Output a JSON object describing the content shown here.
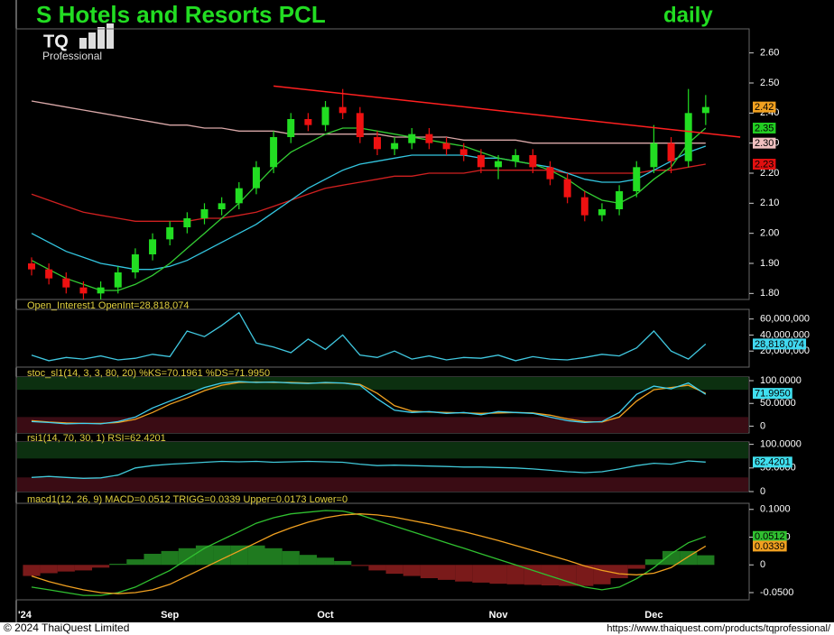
{
  "footer": {
    "copyright": "© 2024 ThaiQuest Limited",
    "url": "https://www.thaiquest.com/products/tqprofessional/"
  },
  "chart_data": [
    {
      "type": "candlestick",
      "title": "S Hotels and Resorts PCL",
      "period": "daily",
      "logo": "TQ",
      "logo_subtitle": "Professional",
      "categories": [
        "'24",
        null,
        null,
        null,
        null,
        null,
        null,
        null,
        "Sep",
        null,
        null,
        null,
        null,
        null,
        null,
        null,
        null,
        "Oct",
        null,
        null,
        null,
        null,
        null,
        null,
        null,
        null,
        null,
        "Nov",
        null,
        null,
        null,
        null,
        null,
        null,
        null,
        null,
        "Dec",
        null,
        null,
        null
      ],
      "open": [
        1.9,
        1.88,
        1.85,
        1.82,
        1.8,
        1.82,
        1.87,
        1.93,
        1.98,
        2.02,
        2.05,
        2.08,
        2.1,
        2.15,
        2.22,
        2.32,
        2.38,
        2.36,
        2.42,
        2.4,
        2.32,
        2.28,
        2.3,
        2.33,
        2.3,
        2.28,
        2.26,
        2.22,
        2.24,
        2.26,
        2.22,
        2.18,
        2.12,
        2.06,
        2.08,
        2.14,
        2.22,
        2.3,
        2.24,
        2.4
      ],
      "high": [
        1.92,
        1.9,
        1.87,
        1.84,
        1.84,
        1.89,
        1.95,
        2.0,
        2.04,
        2.07,
        2.1,
        2.12,
        2.17,
        2.24,
        2.34,
        2.4,
        2.4,
        2.44,
        2.48,
        2.42,
        2.34,
        2.32,
        2.35,
        2.35,
        2.32,
        2.3,
        2.28,
        2.26,
        2.28,
        2.28,
        2.24,
        2.2,
        2.14,
        2.1,
        2.16,
        2.24,
        2.36,
        2.32,
        2.48,
        2.46
      ],
      "low": [
        1.86,
        1.83,
        1.8,
        1.78,
        1.78,
        1.8,
        1.85,
        1.91,
        1.96,
        2.0,
        2.03,
        2.06,
        2.08,
        2.13,
        2.2,
        2.3,
        2.34,
        2.34,
        2.38,
        2.3,
        2.26,
        2.26,
        2.28,
        2.28,
        2.26,
        2.24,
        2.2,
        2.18,
        2.22,
        2.2,
        2.16,
        2.1,
        2.04,
        2.04,
        2.06,
        2.12,
        2.2,
        2.2,
        2.22,
        2.36
      ],
      "close": [
        1.88,
        1.85,
        1.82,
        1.8,
        1.82,
        1.87,
        1.93,
        1.98,
        2.02,
        2.05,
        2.08,
        2.1,
        2.15,
        2.22,
        2.32,
        2.38,
        2.36,
        2.42,
        2.4,
        2.32,
        2.28,
        2.3,
        2.33,
        2.3,
        2.28,
        2.26,
        2.22,
        2.24,
        2.26,
        2.22,
        2.18,
        2.12,
        2.06,
        2.08,
        2.14,
        2.22,
        2.3,
        2.24,
        2.4,
        2.42
      ],
      "up_color": "#22dd22",
      "down_color": "#ee1111",
      "series": [
        {
          "color": "#d9a8a8",
          "values": [
            2.44,
            2.43,
            2.42,
            2.41,
            2.4,
            2.39,
            2.38,
            2.37,
            2.36,
            2.36,
            2.35,
            2.35,
            2.34,
            2.34,
            2.34,
            2.33,
            2.33,
            2.33,
            2.33,
            2.33,
            2.33,
            2.32,
            2.32,
            2.32,
            2.32,
            2.31,
            2.31,
            2.31,
            2.31,
            2.3,
            2.3,
            2.3,
            2.3,
            2.3,
            2.3,
            2.3,
            2.3,
            2.3,
            2.3,
            2.3
          ]
        },
        {
          "color": "#d02020",
          "values": [
            2.13,
            2.11,
            2.09,
            2.07,
            2.06,
            2.05,
            2.04,
            2.04,
            2.04,
            2.04,
            2.05,
            2.05,
            2.06,
            2.07,
            2.09,
            2.11,
            2.13,
            2.15,
            2.16,
            2.17,
            2.18,
            2.19,
            2.19,
            2.2,
            2.2,
            2.2,
            2.21,
            2.21,
            2.21,
            2.21,
            2.21,
            2.2,
            2.2,
            2.2,
            2.2,
            2.2,
            2.21,
            2.21,
            2.22,
            2.23
          ]
        },
        {
          "color": "#33c6e0",
          "values": [
            2.0,
            1.97,
            1.94,
            1.92,
            1.9,
            1.89,
            1.88,
            1.88,
            1.89,
            1.91,
            1.94,
            1.97,
            2.0,
            2.03,
            2.07,
            2.11,
            2.15,
            2.18,
            2.21,
            2.23,
            2.24,
            2.25,
            2.26,
            2.26,
            2.26,
            2.26,
            2.25,
            2.25,
            2.24,
            2.23,
            2.22,
            2.2,
            2.18,
            2.17,
            2.17,
            2.18,
            2.21,
            2.24,
            2.27,
            2.29
          ]
        },
        {
          "color": "#33cc33",
          "values": [
            1.91,
            1.88,
            1.85,
            1.83,
            1.81,
            1.81,
            1.83,
            1.86,
            1.9,
            1.95,
            2.0,
            2.05,
            2.1,
            2.16,
            2.22,
            2.27,
            2.3,
            2.33,
            2.35,
            2.35,
            2.34,
            2.33,
            2.32,
            2.31,
            2.3,
            2.29,
            2.27,
            2.25,
            2.24,
            2.23,
            2.21,
            2.18,
            2.14,
            2.11,
            2.1,
            2.13,
            2.18,
            2.22,
            2.3,
            2.35
          ]
        }
      ],
      "trendline": {
        "x": [
          14,
          41
        ],
        "values": [
          2.49,
          2.32
        ],
        "color": "#ff2020"
      },
      "ylim": [
        1.78,
        2.68
      ],
      "yticks": [
        {
          "value": 1.8,
          "label": "1.80"
        },
        {
          "value": 1.9,
          "label": "1.90"
        },
        {
          "value": 2.0,
          "label": "2.00"
        },
        {
          "value": 2.1,
          "label": "2.10"
        },
        {
          "value": 2.2,
          "label": "2.20"
        },
        {
          "value": 2.3,
          "label": "2.30"
        },
        {
          "value": 2.4,
          "label": "2.40"
        },
        {
          "value": 2.5,
          "label": "2.50"
        },
        {
          "value": 2.6,
          "label": "2.60"
        }
      ],
      "last_value_labels": [
        {
          "value": 2.42,
          "label": "2.42",
          "color": "#f0a020"
        },
        {
          "value": 2.35,
          "label": "2.35",
          "color": "#22cc22"
        },
        {
          "value": 2.3,
          "label": "2.30",
          "color": "#f0c0c0"
        },
        {
          "value": 2.23,
          "label": "2.23",
          "color": "#e01010"
        }
      ]
    },
    {
      "type": "line",
      "title": "Open_Interest1 OpenInt=28,818,074",
      "series": [
        {
          "color": "#40c8e0",
          "values": [
            15000000,
            8000000,
            12000000,
            10000000,
            14000000,
            9000000,
            11000000,
            16000000,
            13000000,
            45000000,
            38000000,
            52000000,
            68000000,
            30000000,
            25000000,
            18000000,
            35000000,
            22000000,
            40000000,
            15000000,
            12000000,
            20000000,
            10000000,
            14000000,
            9000000,
            12000000,
            11000000,
            15000000,
            8000000,
            13000000,
            10000000,
            9000000,
            12000000,
            16000000,
            14000000,
            24000000,
            45000000,
            20000000,
            10000000,
            28818074
          ]
        }
      ],
      "ylim": [
        0,
        72000000
      ],
      "yticks": [
        {
          "value": 20000000,
          "label": "20,000,000"
        },
        {
          "value": 40000000,
          "label": "40,000,000"
        },
        {
          "value": 60000000,
          "label": "60,000,000"
        }
      ],
      "last_value_labels": [
        {
          "value": 28818074,
          "label": "28,818,074",
          "color": "#40d8f0"
        }
      ]
    },
    {
      "type": "line",
      "title": "stoc_sl1(14, 3, 3, 80, 20) %KS=70.1961 %DS=71.9950",
      "bands": [
        {
          "from": 80,
          "to": 108,
          "color": "#0c3010"
        },
        {
          "from": -15,
          "to": 20,
          "color": "#3a0c14"
        }
      ],
      "series": [
        {
          "color": "#f0a020",
          "values": [
            12,
            9,
            7,
            6,
            6,
            8,
            15,
            30,
            48,
            62,
            78,
            90,
            96,
            97,
            96,
            96,
            95,
            95,
            95,
            92,
            72,
            45,
            33,
            31,
            30,
            29,
            28,
            29,
            30,
            29,
            24,
            16,
            10,
            9,
            20,
            55,
            80,
            85,
            90,
            72
          ]
        },
        {
          "color": "#40d0f0",
          "values": [
            10,
            8,
            5,
            6,
            5,
            10,
            20,
            40,
            55,
            70,
            85,
            95,
            98,
            96,
            97,
            95,
            94,
            96,
            95,
            90,
            60,
            35,
            30,
            32,
            28,
            30,
            25,
            32,
            30,
            28,
            20,
            12,
            8,
            10,
            30,
            70,
            88,
            82,
            95,
            70
          ]
        }
      ],
      "ylim": [
        -15,
        108
      ],
      "yticks": [
        0,
        {
          "value": 50,
          "label": "50.0000"
        },
        {
          "value": 100,
          "label": "100.0000"
        }
      ],
      "last_value_labels": [
        {
          "value": 71.995,
          "label": "71.9950",
          "color": "#40e0f0"
        }
      ]
    },
    {
      "type": "line",
      "title": "rsi1(14, 70, 30, 1) RSI=62.4201",
      "bands": [
        {
          "from": 70,
          "to": 105,
          "color": "#0c3010"
        },
        {
          "from": 0,
          "to": 30,
          "color": "#3a0c14"
        }
      ],
      "series": [
        {
          "color": "#40c8d8",
          "values": [
            30,
            32,
            30,
            28,
            29,
            35,
            50,
            55,
            58,
            60,
            62,
            64,
            63,
            64,
            62,
            63,
            64,
            63,
            62,
            58,
            55,
            56,
            55,
            54,
            53,
            52,
            52,
            51,
            50,
            48,
            45,
            42,
            40,
            42,
            48,
            55,
            60,
            58,
            65,
            62.4201
          ]
        }
      ],
      "ylim": [
        0,
        105
      ],
      "yticks": [
        0,
        {
          "value": 50,
          "label": "50.0000"
        },
        {
          "value": 100,
          "label": "100.0000"
        }
      ],
      "last_value_labels": [
        {
          "value": 62.4201,
          "label": "62.4201",
          "color": "#40e0f0"
        }
      ]
    },
    {
      "type": "macd",
      "title": "macd1(12, 26, 9) MACD=0.0512 TRIGG=0.0339 Upper=0.0173 Lower=0",
      "histogram": {
        "pos_color": "#1f7a1f",
        "neg_color": "#7a1a1a",
        "values": [
          -0.02,
          -0.015,
          -0.012,
          -0.01,
          -0.005,
          0.002,
          0.01,
          0.02,
          0.025,
          0.03,
          0.035,
          0.035,
          0.035,
          0.035,
          0.03,
          0.025,
          0.018,
          0.013,
          0.007,
          -0.002,
          -0.01,
          -0.016,
          -0.02,
          -0.024,
          -0.027,
          -0.03,
          -0.032,
          -0.034,
          -0.035,
          -0.036,
          -0.037,
          -0.038,
          -0.038,
          -0.035,
          -0.024,
          -0.007,
          0.01,
          0.025,
          0.025,
          0.0173
        ]
      },
      "series": [
        {
          "color": "#30c030",
          "values": [
            -0.04,
            -0.045,
            -0.05,
            -0.055,
            -0.055,
            -0.05,
            -0.04,
            -0.025,
            -0.01,
            0.01,
            0.03,
            0.045,
            0.06,
            0.075,
            0.085,
            0.092,
            0.095,
            0.098,
            0.097,
            0.09,
            0.08,
            0.07,
            0.06,
            0.05,
            0.04,
            0.03,
            0.02,
            0.01,
            0,
            -0.01,
            -0.02,
            -0.03,
            -0.04,
            -0.045,
            -0.04,
            -0.025,
            -0.005,
            0.02,
            0.04,
            0.0512
          ]
        },
        {
          "color": "#f0a020",
          "values": [
            -0.02,
            -0.03,
            -0.038,
            -0.045,
            -0.05,
            -0.052,
            -0.05,
            -0.045,
            -0.035,
            -0.02,
            -0.005,
            0.01,
            0.025,
            0.04,
            0.055,
            0.067,
            0.077,
            0.085,
            0.09,
            0.092,
            0.09,
            0.086,
            0.08,
            0.074,
            0.067,
            0.06,
            0.052,
            0.044,
            0.035,
            0.026,
            0.017,
            0.008,
            -0.002,
            -0.01,
            -0.016,
            -0.018,
            -0.015,
            -0.005,
            0.015,
            0.0339
          ]
        }
      ],
      "ylim": [
        -0.063,
        0.111
      ],
      "yticks": [
        {
          "value": -0.05,
          "label": "-0.0500"
        },
        0,
        {
          "value": 0.05,
          "label": "0.0500"
        },
        {
          "value": 0.1,
          "label": "0.1000"
        }
      ],
      "last_value_labels": [
        {
          "value": 0.0512,
          "label": "0.0512",
          "color": "#30c030"
        },
        {
          "value": 0.0339,
          "label": "0.0339",
          "color": "#f0a020"
        }
      ]
    }
  ]
}
